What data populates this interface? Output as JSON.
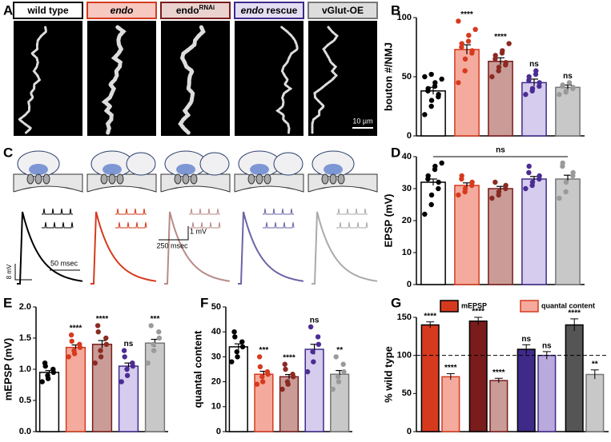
{
  "panel_labels": [
    "A",
    "B",
    "C",
    "D",
    "E",
    "F",
    "G"
  ],
  "genotypes": [
    {
      "label": [
        {
          "text": "wild type"
        }
      ],
      "fill": "#ffffff",
      "edge": "#000000",
      "dot": "#000000",
      "header_fill": "#ffffff",
      "trace": "#000000"
    },
    {
      "label": [
        {
          "text": "endo",
          "italic": true
        }
      ],
      "fill": "#f4aa9c",
      "edge": "#d63a1e",
      "dot": "#d63a1e",
      "header_fill": "#f6c8c0",
      "trace": "#d63a1e"
    },
    {
      "label": [
        {
          "text": "endo"
        },
        {
          "text": "RNAi",
          "sup": true
        }
      ],
      "fill": "#c99c97",
      "edge": "#7a1c1c",
      "dot": "#8b2a22",
      "header_fill": "#ead2cf",
      "trace": "#b88a86"
    },
    {
      "label": [
        {
          "text": "endo",
          "italic": true
        },
        {
          "text": " rescue"
        }
      ],
      "fill": "#d6ccee",
      "edge": "#3f2a8a",
      "dot": "#4b2d93",
      "header_fill": "#e4def2",
      "trace": "#6a64a8"
    },
    {
      "label": [
        {
          "text": "vGlut-OE"
        }
      ],
      "fill": "#c8c8c8",
      "edge": "#777777",
      "dot": "#9a9a9a",
      "header_fill": "#dddddd",
      "trace": "#aaaaaa"
    }
  ],
  "image_scale_label": "10 µm",
  "trace_scale_labels": {
    "mini_v": "1 mV",
    "mini_t": "250 msec",
    "epsp_t": "50 msec",
    "epsp_v": "8 mV"
  },
  "chart_data": [
    {
      "type": "bar",
      "ylabel": "bouton #/NMJ",
      "ylim": [
        0,
        100
      ],
      "yticks": [
        0,
        50,
        100
      ],
      "values": [
        38,
        73,
        63,
        45,
        41
      ],
      "errors": [
        3,
        4,
        3,
        3,
        2
      ],
      "significance": [
        null,
        "****",
        "****",
        "ns",
        "ns"
      ],
      "points": [
        [
          18,
          25,
          30,
          33,
          35,
          38,
          40,
          42,
          45,
          48,
          50,
          52
        ],
        [
          45,
          55,
          65,
          70,
          72,
          75,
          78,
          80,
          85,
          90,
          97
        ],
        [
          50,
          55,
          58,
          60,
          62,
          65,
          68,
          70,
          72,
          78
        ],
        [
          35,
          38,
          40,
          42,
          45,
          47,
          50,
          52,
          55
        ],
        [
          35,
          37,
          38,
          40,
          41,
          42,
          43,
          45
        ]
      ]
    },
    {
      "type": "bar",
      "ylabel": "EPSP (mV)",
      "ylim": [
        0,
        40
      ],
      "yticks": [
        0,
        10,
        20,
        30,
        40
      ],
      "values": [
        32,
        31,
        30,
        33,
        33
      ],
      "errors": [
        1,
        0.8,
        0.7,
        0.8,
        1.2
      ],
      "significance": [
        null,
        null,
        null,
        null,
        null
      ],
      "bracket_label": "ns",
      "points": [
        [
          22,
          25,
          28,
          30,
          32,
          33,
          34,
          36,
          37,
          38
        ],
        [
          28,
          29,
          30,
          31,
          32,
          33,
          34
        ],
        [
          27,
          28,
          29,
          30,
          31,
          32
        ],
        [
          30,
          31,
          32,
          33,
          34,
          35,
          37
        ],
        [
          27,
          29,
          32,
          34,
          35,
          37,
          38
        ]
      ]
    },
    {
      "type": "bar",
      "ylabel": "mEPSP (mV)",
      "ylim": [
        0,
        2
      ],
      "yticks": [
        {
          "value": 0,
          "label": "0.0"
        },
        0.5,
        {
          "value": 1,
          "label": "1.0"
        },
        1.5,
        {
          "value": 2,
          "label": "2.0"
        }
      ],
      "values": [
        0.95,
        1.35,
        1.4,
        1.05,
        1.42
      ],
      "errors": [
        0.03,
        0.04,
        0.06,
        0.05,
        0.06
      ],
      "significance": [
        null,
        "****",
        "****",
        "ns",
        "***"
      ],
      "points": [
        [
          0.8,
          0.85,
          0.9,
          0.95,
          1.0,
          1.05,
          1.1
        ],
        [
          1.2,
          1.25,
          1.3,
          1.35,
          1.4,
          1.45,
          1.55
        ],
        [
          1.1,
          1.2,
          1.3,
          1.4,
          1.5,
          1.6,
          1.7
        ],
        [
          0.8,
          0.9,
          1.0,
          1.05,
          1.1,
          1.2,
          1.3
        ],
        [
          1.1,
          1.3,
          1.4,
          1.5,
          1.6,
          1.7
        ]
      ]
    },
    {
      "type": "bar",
      "ylabel": "quantal content",
      "ylim": [
        0,
        50
      ],
      "yticks": [
        0,
        10,
        20,
        30,
        40,
        50
      ],
      "values": [
        34,
        23,
        22,
        33,
        23
      ],
      "errors": [
        1.2,
        1.2,
        0.9,
        2,
        1.5
      ],
      "significance": [
        null,
        "***",
        "****",
        "ns",
        "**"
      ],
      "points": [
        [
          28,
          30,
          32,
          34,
          36,
          38,
          40
        ],
        [
          19,
          20,
          22,
          23,
          24,
          26,
          30
        ],
        [
          17,
          19,
          20,
          22,
          23,
          25,
          27
        ],
        [
          24,
          28,
          32,
          35,
          38,
          42
        ],
        [
          17,
          20,
          22,
          24,
          27,
          30
        ]
      ]
    },
    {
      "type": "grouped_bar",
      "ylabel": "% wild type",
      "ylim": [
        0,
        150
      ],
      "yticks": [
        0,
        50,
        100,
        150
      ],
      "reference_line": 100,
      "legend": "top",
      "series": [
        {
          "name": "mEPSP",
          "colors": [
            "#d63a1e",
            "#7a1c1c",
            "#3f2a8a",
            "#555555"
          ],
          "edge_colors": [
            "#000000",
            "#000000",
            "#000000",
            "#000000"
          ],
          "values": [
            140,
            145,
            108,
            140
          ],
          "errors": [
            4,
            5,
            6,
            8
          ],
          "significance": [
            "****",
            "****",
            "ns",
            "****"
          ]
        },
        {
          "name": "quantal content",
          "colors": [
            "#f4aa9c",
            "#c99c97",
            "#b9a9dc",
            "#c8c8c8"
          ],
          "edge_colors": [
            "#d63a1e",
            "#7a1c1c",
            "#3f2a8a",
            "#777777"
          ],
          "values": [
            72,
            67,
            100,
            75
          ],
          "errors": [
            4,
            3,
            5,
            6
          ],
          "significance": [
            "****",
            "****",
            "ns",
            "**"
          ]
        }
      ]
    }
  ]
}
